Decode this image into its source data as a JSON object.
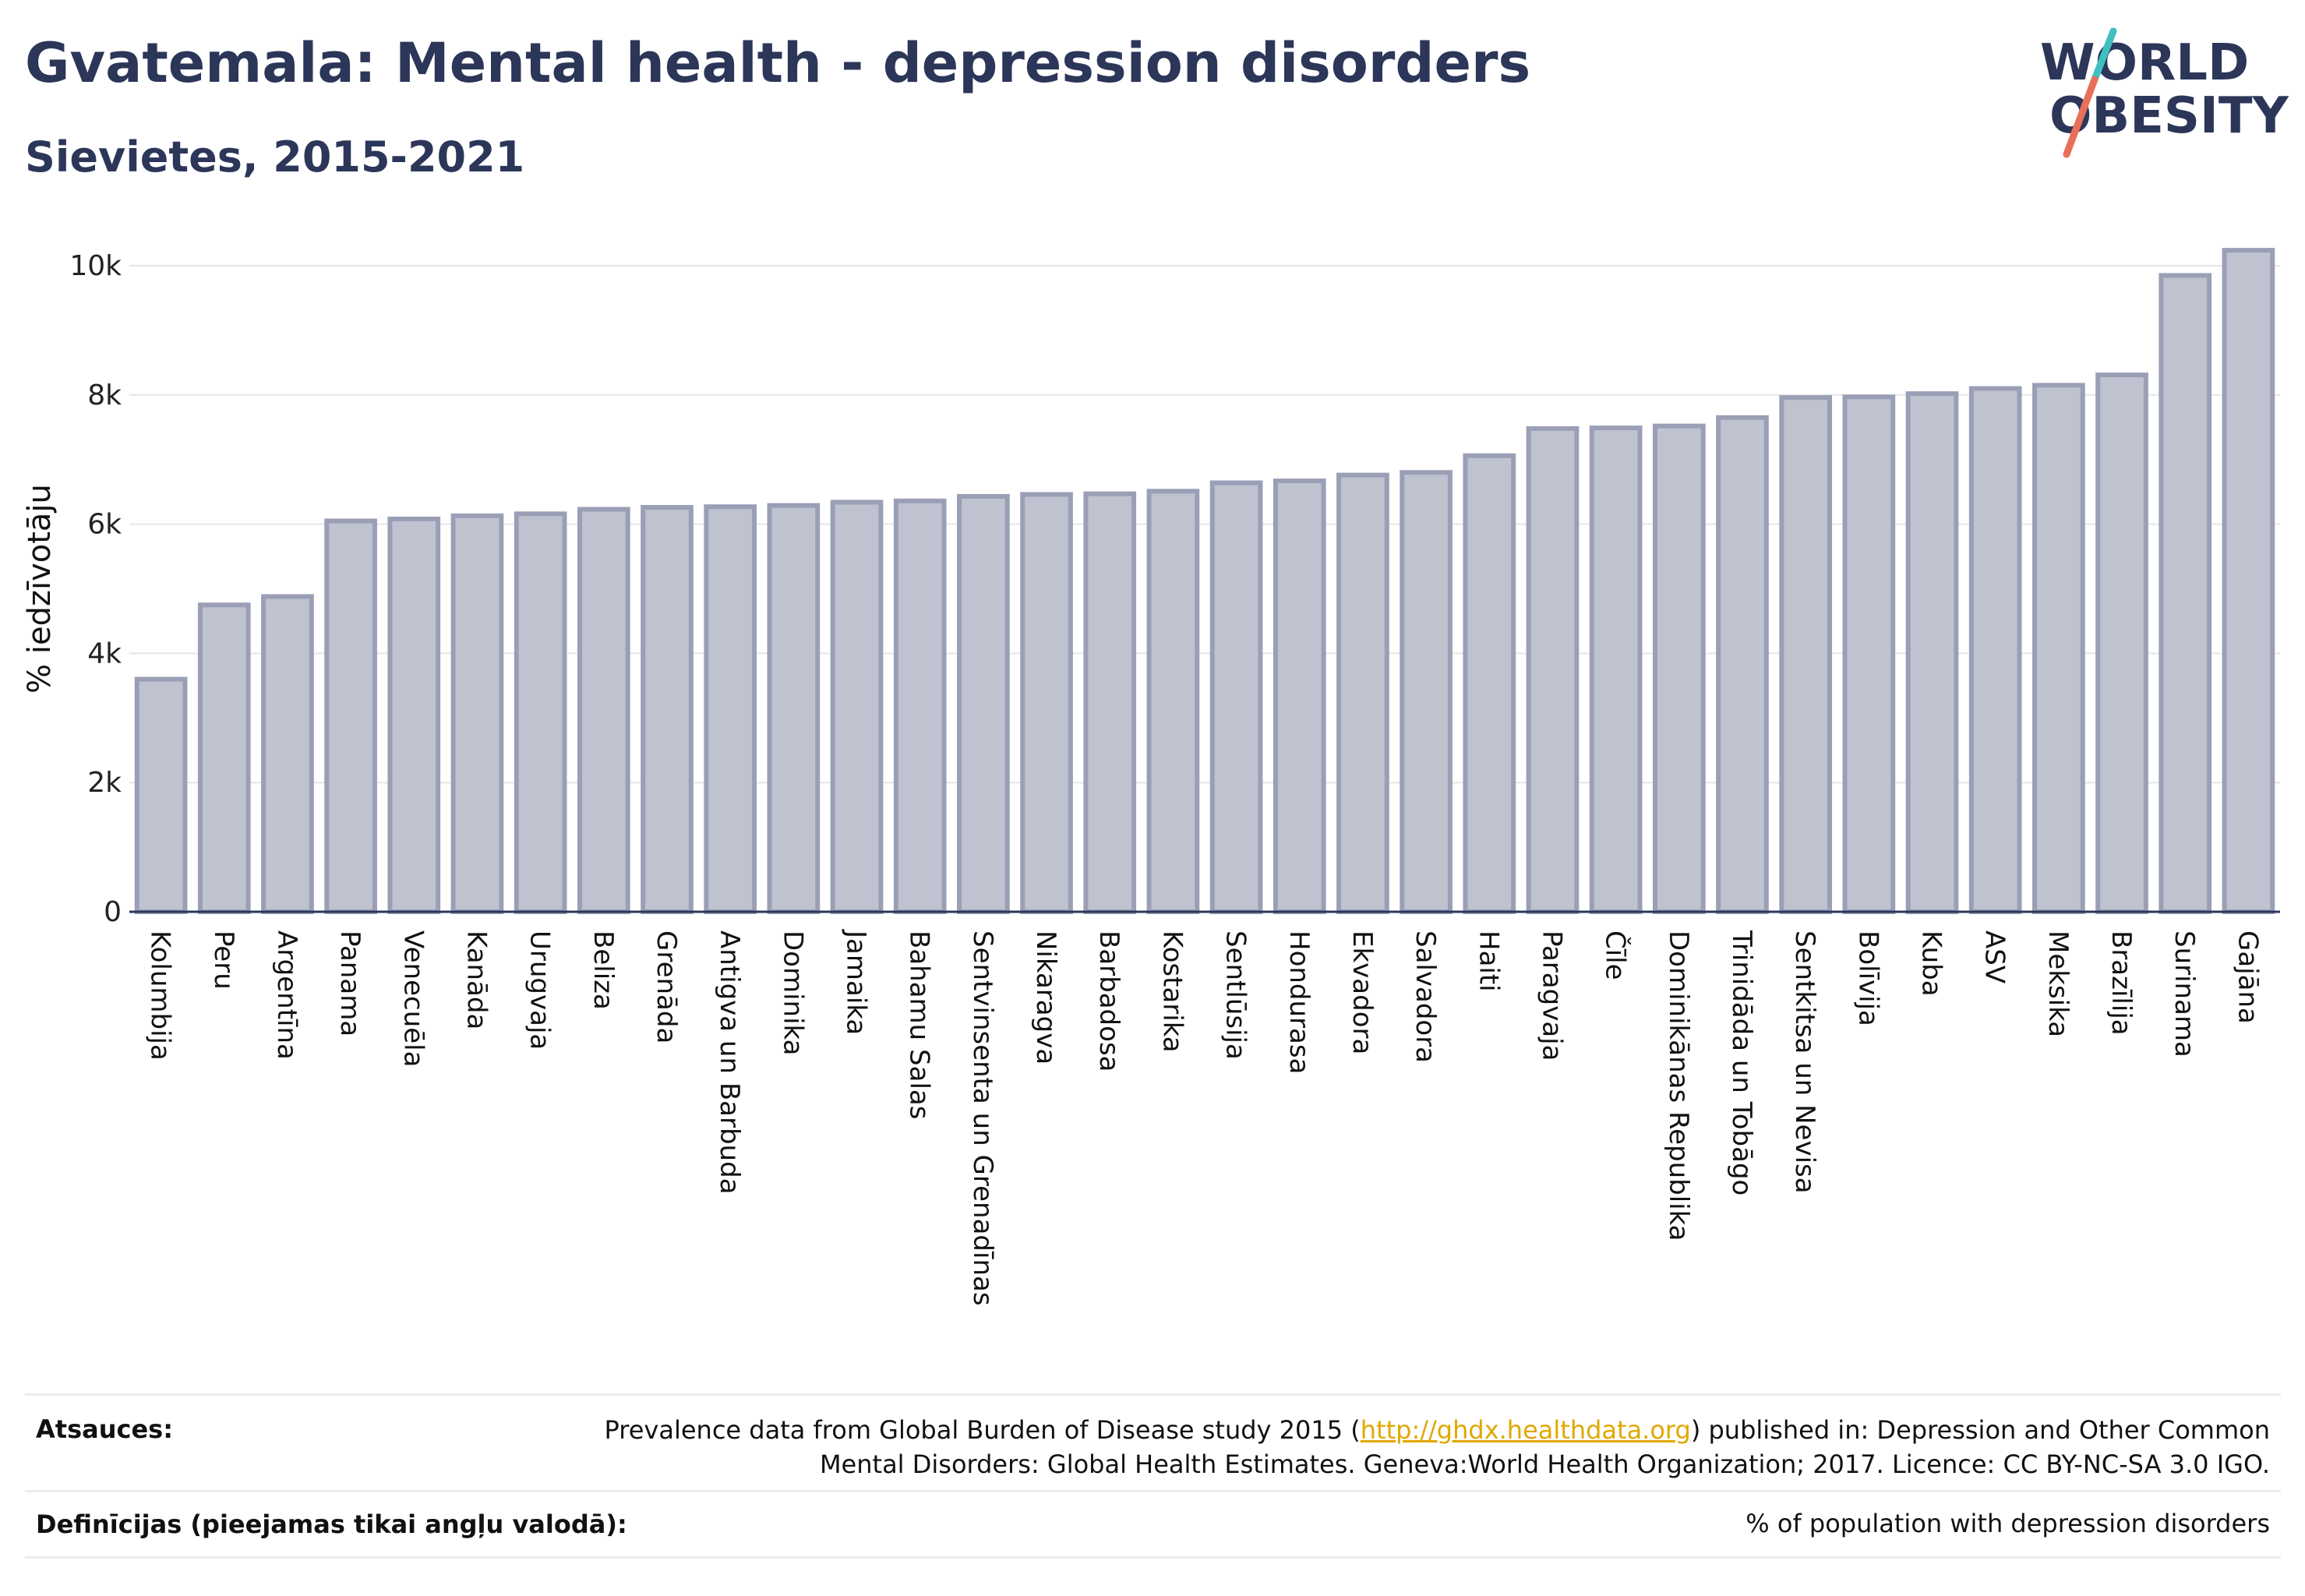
{
  "header": {
    "title": "Gvatemala: Mental health - depression disorders",
    "subtitle": "Sievietes, 2015-2021"
  },
  "logo": {
    "line1": "WORLD",
    "line2": "OBESITY",
    "colors": {
      "text": "#2c3659",
      "stroke_top": "#3fbfbf",
      "stroke_bottom": "#e8705a"
    }
  },
  "chart_data": {
    "type": "bar",
    "ylabel": "% iedzīvotāju",
    "ylim": [
      0,
      10500
    ],
    "yticks": [
      {
        "value": 0,
        "label": "0"
      },
      {
        "value": 2000,
        "label": "2k"
      },
      {
        "value": 4000,
        "label": "4k"
      },
      {
        "value": 6000,
        "label": "6k"
      },
      {
        "value": 8000,
        "label": "8k"
      },
      {
        "value": 10000,
        "label": "10k"
      }
    ],
    "grid": true,
    "bar_color": "#bfc2cf",
    "bar_edge_color": "#9a9fb6",
    "categories": [
      "Kolumbija",
      "Peru",
      "Argentīna",
      "Panama",
      "Venecuēla",
      "Kanāda",
      "Urugvaja",
      "Beliza",
      "Grenāda",
      "Antigva un Barbuda",
      "Dominika",
      "Jamaika",
      "Bahamu Salas",
      "Sentvinsenta un Grenadīnas",
      "Nikaragva",
      "Barbadosa",
      "Kostarika",
      "Sentlūsija",
      "Hondurasa",
      "Ekvadora",
      "Salvadora",
      "Haiti",
      "Paragvaja",
      "Čīle",
      "Dominikānas Republika",
      "Trinidāda un Tobāgo",
      "Sentkitsa un Nevisa",
      "Bolīvija",
      "Kuba",
      "ASV",
      "Meksika",
      "Brazīlija",
      "Surinama",
      "Gajāna"
    ],
    "values": [
      3600,
      4750,
      4880,
      6050,
      6080,
      6130,
      6160,
      6230,
      6260,
      6270,
      6290,
      6340,
      6360,
      6430,
      6460,
      6470,
      6510,
      6640,
      6670,
      6760,
      6800,
      7060,
      7480,
      7490,
      7520,
      7650,
      7960,
      7970,
      8020,
      8100,
      8150,
      8310,
      9850,
      10240
    ]
  },
  "footer": {
    "sources_label": "Atsauces:",
    "sources_text_before": "Prevalence data from Global Burden of Disease study 2015 (",
    "sources_link": "http://ghdx.healthdata.org",
    "sources_text_after": ") published in: Depression and Other Common",
    "sources_line2": "Mental Disorders: Global Health Estimates. Geneva:World Health Organization; 2017. Licence: CC BY-NC-SA 3.0 IGO.",
    "definitions_label": "Definīcijas (pieejamas tikai angļu valodā):",
    "definitions_text": "% of population with depression disorders"
  }
}
